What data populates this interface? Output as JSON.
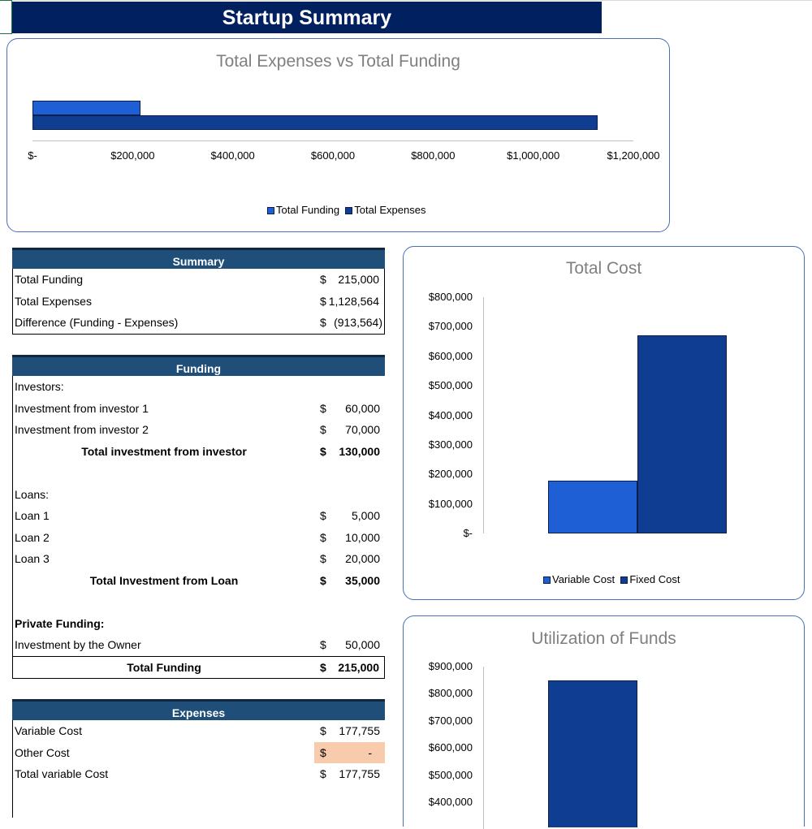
{
  "title": "Startup Summary",
  "colors": {
    "header_navy": "#002060",
    "table_header": "#1f4e79",
    "bar_light": "#1f5fd6",
    "bar_dark": "#0f3d91",
    "highlight": "#f8cbad"
  },
  "chart_data": [
    {
      "type": "bar",
      "orientation": "horizontal",
      "title": "Total Expenses vs Total Funding",
      "series": [
        {
          "name": "Total Funding",
          "values": [
            215000
          ]
        },
        {
          "name": "Total Expenses",
          "values": [
            1128564
          ]
        }
      ],
      "xlim": [
        0,
        1200000
      ],
      "x_ticks": [
        "$-",
        "$200,000",
        "$400,000",
        "$600,000",
        "$800,000",
        "$1,000,000",
        "$1,200,000"
      ],
      "x_tick_values": [
        0,
        200000,
        400000,
        600000,
        800000,
        1000000,
        1200000
      ],
      "legend": [
        "Total Funding",
        "Total Expenses"
      ]
    },
    {
      "type": "bar",
      "title": "Total Cost",
      "series": [
        {
          "name": "Variable Cost",
          "values": [
            177755
          ]
        },
        {
          "name": "Fixed Cost",
          "values": [
            670000
          ]
        }
      ],
      "ylim": [
        0,
        800000
      ],
      "y_ticks": [
        "$800,000",
        "$700,000",
        "$600,000",
        "$500,000",
        "$400,000",
        "$300,000",
        "$200,000",
        "$100,000",
        "$-"
      ],
      "y_tick_values": [
        800000,
        700000,
        600000,
        500000,
        400000,
        300000,
        200000,
        100000,
        0
      ],
      "legend": [
        "Variable Cost",
        "Fixed Cost"
      ]
    },
    {
      "type": "bar",
      "title": "Utilization of Funds",
      "series": [
        {
          "name": "Utilization",
          "values": [
            850000
          ]
        }
      ],
      "y_ticks": [
        "$900,000",
        "$800,000",
        "$700,000",
        "$600,000",
        "$500,000",
        "$400,000"
      ],
      "y_tick_values": [
        900000,
        800000,
        700000,
        600000,
        500000,
        400000
      ]
    }
  ],
  "summary": {
    "header": "Summary",
    "rows": [
      {
        "label": "Total Funding",
        "cur": "$",
        "value": "215,000"
      },
      {
        "label": "Total Expenses",
        "cur": "$",
        "value": "1,128,564"
      },
      {
        "label": "Difference (Funding - Expenses)",
        "cur": "$",
        "value": "(913,564)"
      }
    ]
  },
  "funding": {
    "header": "Funding",
    "investors_label": "Investors:",
    "investors": [
      {
        "label": "Investment from investor 1",
        "cur": "$",
        "value": "60,000"
      },
      {
        "label": "Investment from investor 2",
        "cur": "$",
        "value": "70,000"
      }
    ],
    "investors_total": {
      "label": "Total investment from investor",
      "cur": "$",
      "value": "130,000"
    },
    "loans_label": "Loans:",
    "loans": [
      {
        "label": "Loan 1",
        "cur": "$",
        "value": "5,000"
      },
      {
        "label": "Loan 2",
        "cur": "$",
        "value": "10,000"
      },
      {
        "label": "Loan 3",
        "cur": "$",
        "value": "20,000"
      }
    ],
    "loans_total": {
      "label": "Total Investment from Loan",
      "cur": "$",
      "value": "35,000"
    },
    "private_label": "Private Funding:",
    "owner": {
      "label": "Investment by the Owner",
      "cur": "$",
      "value": "50,000"
    },
    "total": {
      "label": "Total Funding",
      "cur": "$",
      "value": "215,000"
    }
  },
  "expenses": {
    "header": "Expenses",
    "rows": [
      {
        "label": "Variable Cost",
        "cur": "$",
        "value": "177,755"
      },
      {
        "label": "Other Cost",
        "cur": "$",
        "value": "-"
      },
      {
        "label": "Total variable Cost",
        "cur": "$",
        "value": "177,755"
      }
    ]
  }
}
